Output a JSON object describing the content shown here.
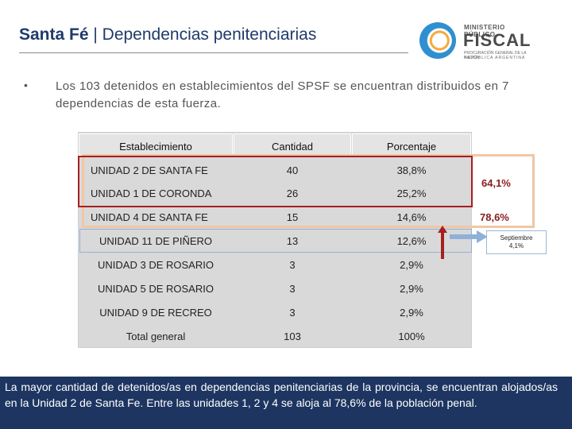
{
  "header": {
    "title_bold": "Santa Fé",
    "title_rest": " | Dependencias penitenciarias"
  },
  "logo": {
    "line1": "MINISTERIO PÚBLICO",
    "line2": "FISCAL",
    "line3": "PROCURACIÓN GENERAL DE LA NACIÓN",
    "line4": "REPÚBLICA ARGENTINA"
  },
  "bullet": {
    "text": "Los 103 detenidos en establecimientos del SPSF se encuentran distribuidos en 7 dependencias de esta fuerza."
  },
  "table": {
    "headers": [
      "Establecimiento",
      "Cantidad",
      "Porcentaje"
    ],
    "rows": [
      {
        "name": "UNIDAD 2 DE SANTA FE",
        "count": "40",
        "pct": "38,8%"
      },
      {
        "name": "UNIDAD 1 DE CORONDA",
        "count": "26",
        "pct": "25,2%"
      },
      {
        "name": "UNIDAD 4 DE SANTA FE",
        "count": "15",
        "pct": "14,6%"
      },
      {
        "name": "UNIDAD 11 DE PIÑERO",
        "count": "13",
        "pct": "12,6%"
      },
      {
        "name": "UNIDAD 3 DE ROSARIO",
        "count": "3",
        "pct": "2,9%"
      },
      {
        "name": "UNIDAD 5 DE ROSARIO",
        "count": "3",
        "pct": "2,9%"
      },
      {
        "name": "UNIDAD 9 DE RECREO",
        "count": "3",
        "pct": "2,9%"
      }
    ],
    "total": {
      "name": "Total general",
      "count": "103",
      "pct": "100%"
    }
  },
  "annotations": {
    "pct_64": "64,1%",
    "pct_78": "78,6%",
    "sep_line1": "Septiembre",
    "sep_line2": "4,1%"
  },
  "footer": {
    "text": "La mayor cantidad de detenidos/as en dependencias penitenciarias de la provincia, se encuentran alojados/as en la Unidad 2 de Santa Fe. Entre las unidades 1, 2 y 4 se aloja al 78,6% de la población penal."
  }
}
